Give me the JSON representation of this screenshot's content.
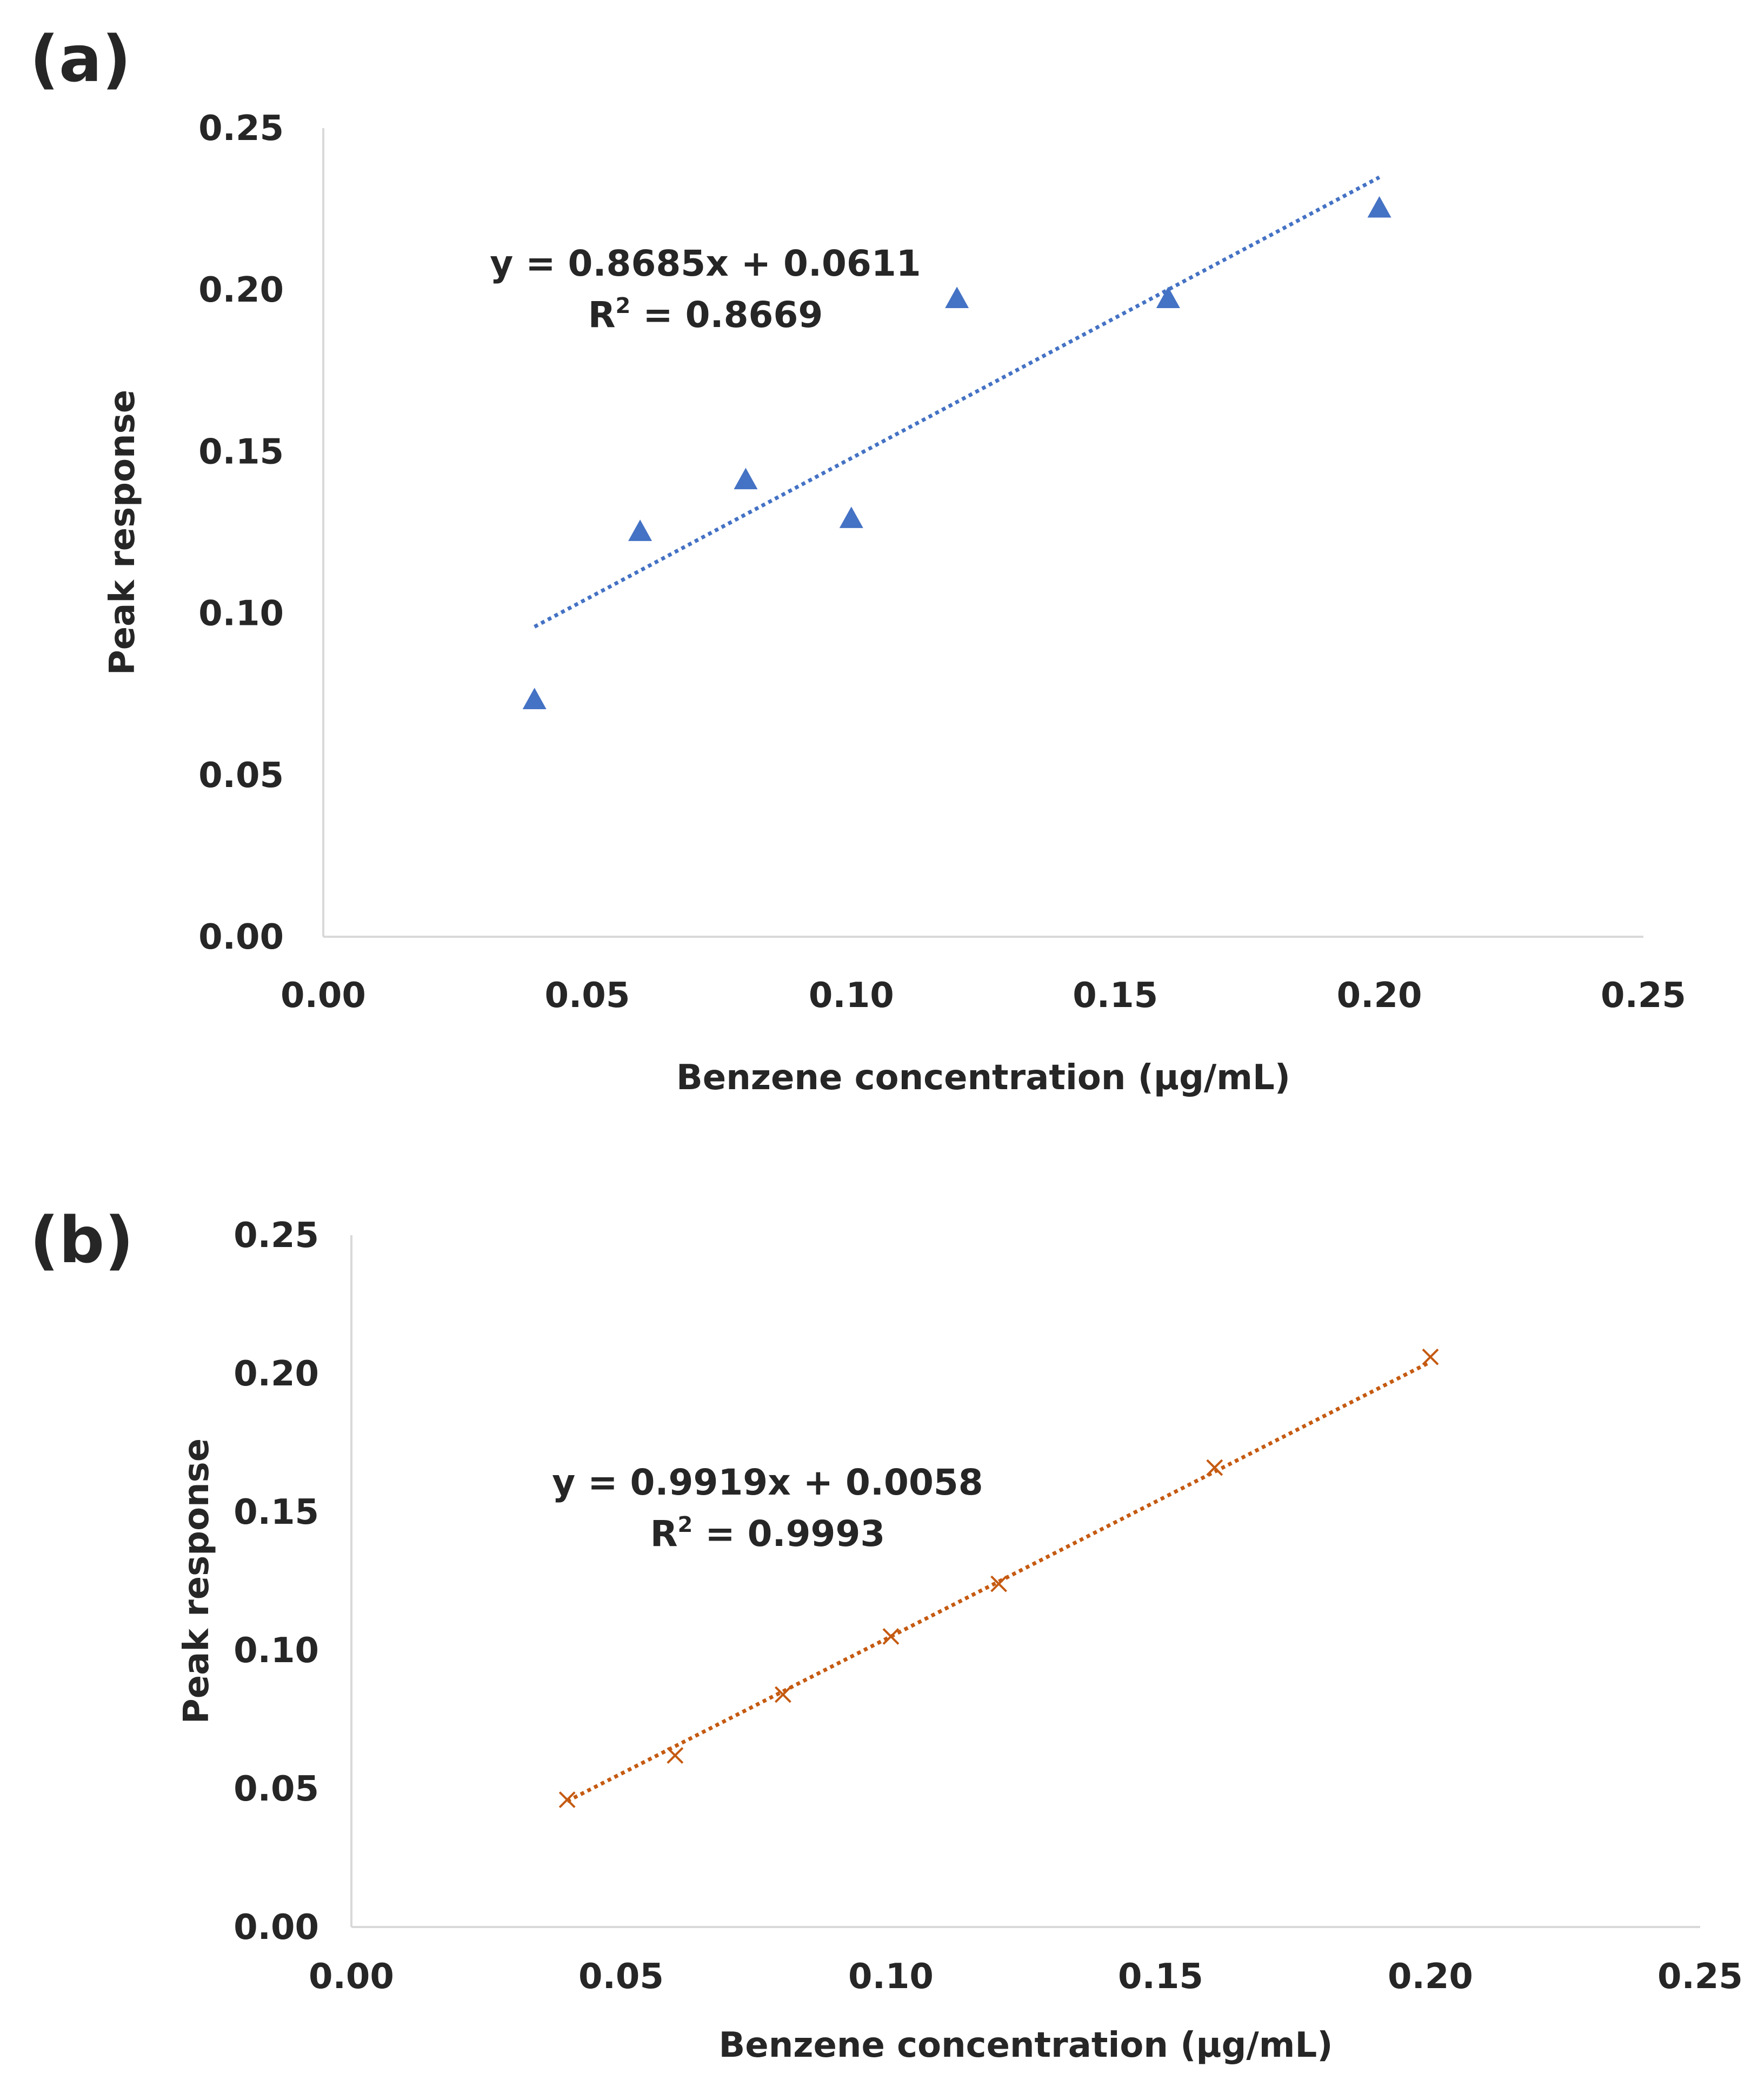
{
  "chart_data": [
    {
      "type": "scatter",
      "panel_label": "(a)",
      "xlabel": "Benzene concentration (µg/mL)",
      "ylabel": "Peak response",
      "xlim": [
        0,
        0.25
      ],
      "ylim": [
        0,
        0.25
      ],
      "x_ticks": [
        "0.00",
        "0.05",
        "0.10",
        "0.15",
        "0.20",
        "0.25"
      ],
      "y_ticks": [
        "0.00",
        "0.05",
        "0.10",
        "0.15",
        "0.20",
        "0.25"
      ],
      "grid": false,
      "marker": "triangle",
      "color": "#4472C4",
      "x": [
        0.04,
        0.06,
        0.08,
        0.1,
        0.12,
        0.16,
        0.2
      ],
      "y": [
        0.073,
        0.125,
        0.141,
        0.129,
        0.197,
        0.197,
        0.225
      ],
      "trendline": {
        "slope": 0.8685,
        "intercept": 0.0611,
        "x_range": [
          0.04,
          0.2
        ],
        "style": "dotted"
      },
      "equation": "y = 0.8685x + 0.0611",
      "r2_prefix": "R",
      "r2_sup": "2",
      "r2_value": " = 0.8669"
    },
    {
      "type": "scatter",
      "panel_label": "(b)",
      "xlabel": "Benzene concentration (µg/mL)",
      "ylabel": "Peak response",
      "xlim": [
        0,
        0.25
      ],
      "ylim": [
        0,
        0.25
      ],
      "x_ticks": [
        "0.00",
        "0.05",
        "0.10",
        "0.15",
        "0.20",
        "0.25"
      ],
      "y_ticks": [
        "0.00",
        "0.05",
        "0.10",
        "0.15",
        "0.20",
        "0.25"
      ],
      "grid": false,
      "marker": "x",
      "color": "#C55A11",
      "x": [
        0.04,
        0.06,
        0.08,
        0.1,
        0.12,
        0.16,
        0.2
      ],
      "y": [
        0.046,
        0.062,
        0.084,
        0.105,
        0.124,
        0.166,
        0.206
      ],
      "trendline": {
        "slope": 0.9919,
        "intercept": 0.0058,
        "x_range": [
          0.04,
          0.2
        ],
        "style": "dotted"
      },
      "equation": "y = 0.9919x + 0.0058",
      "r2_prefix": "R",
      "r2_sup": "2",
      "r2_value": " = 0.9993"
    }
  ]
}
